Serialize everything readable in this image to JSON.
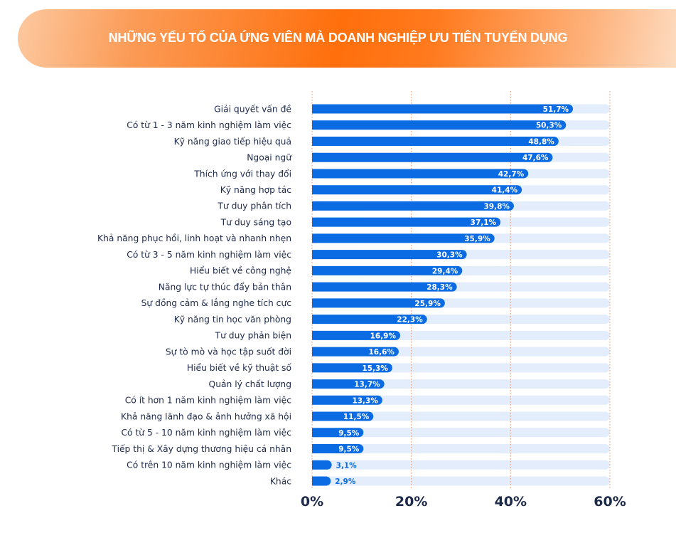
{
  "chart_data": {
    "type": "bar",
    "orientation": "horizontal",
    "title": "NHỮNG YẾU TỐ CỦA ỨNG VIÊN MÀ DOANH NGHIỆP ƯU TIÊN TUYỂN DỤNG",
    "categories": [
      "Giải quyết vấn đề",
      "Có từ 1 - 3 năm kinh nghiệm làm việc",
      "Kỹ năng giao tiếp hiệu quả",
      "Ngoại ngữ",
      "Thích ứng với thay đổi",
      "Kỹ năng hợp tác",
      "Tư duy phân tích",
      "Tư duy sáng tạo",
      "Khả năng phục hồi, linh hoạt và nhanh nhẹn",
      "Có từ 3 - 5 năm kinh nghiệm làm việc",
      "Hiểu biết về công nghệ",
      "Năng lực tự thúc đẩy bản thân",
      "Sự đồng cảm & lắng nghe tích cực",
      "Kỹ năng tin học văn phòng",
      "Tư duy phản biện",
      "Sự tò mò và học tập suốt đời",
      "Hiểu biết về kỹ thuật số",
      "Quản lý chất lượng",
      "Có ít hơn 1 năm kinh nghiệm làm việc",
      "Khả năng lãnh đạo & ảnh hưởng xã hội",
      "Có từ 5 - 10 năm kinh nghiệm làm việc",
      "Tiếp thị & Xây dựng thương hiệu cá nhân",
      "Có trên 10 năm kinh nghiệm làm việc",
      "Khác"
    ],
    "values": [
      51.7,
      50.3,
      48.8,
      47.6,
      42.7,
      41.4,
      39.8,
      37.1,
      35.9,
      30.3,
      29.4,
      28.3,
      25.9,
      22.3,
      16.9,
      16.6,
      15.3,
      13.7,
      13.3,
      11.5,
      9.5,
      9.5,
      3.1,
      2.9
    ],
    "data_labels": [
      "51,7%",
      "50,3%",
      "48,8%",
      "47,6%",
      "42,7%",
      "41,4%",
      "39,8%",
      "37,1%",
      "35,9%",
      "30,3%",
      "29,4%",
      "28,3%",
      "25,9%",
      "22,3%",
      "16,9%",
      "16,6%",
      "15,3%",
      "13,7%",
      "13,3%",
      "11,5%",
      "9,5%",
      "9,5%",
      "3,1%",
      "2,9%"
    ],
    "xlim": [
      0,
      60
    ],
    "xticks": [
      0,
      20,
      40,
      60
    ],
    "xtick_labels": [
      "0%",
      "20%",
      "40%",
      "60%"
    ],
    "grid": "vertical dotted",
    "colors": {
      "bar": "#0b6be3",
      "track": "#e3edfb",
      "grid": "#e8956a",
      "label": "#1e2a4a",
      "header": "#ff6f0c"
    }
  }
}
